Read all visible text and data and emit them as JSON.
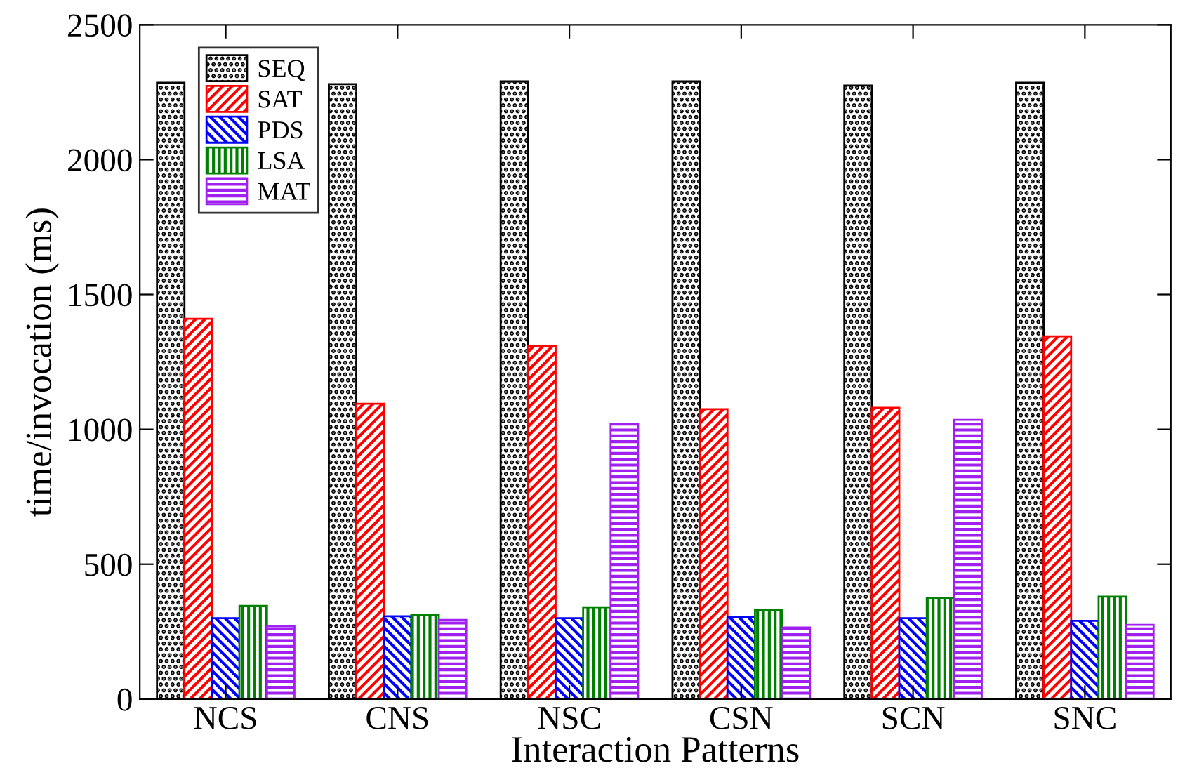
{
  "chart_data": {
    "type": "bar",
    "xlabel": "Interaction Patterns",
    "ylabel": "time/invocation (ms)",
    "categories": [
      "NCS",
      "CNS",
      "NSC",
      "CSN",
      "SCN",
      "SNC"
    ],
    "series": [
      {
        "name": "SEQ",
        "color": "#000000",
        "values": [
          2285,
          2280,
          2290,
          2290,
          2275,
          2285
        ]
      },
      {
        "name": "SAT",
        "color": "#ff0000",
        "values": [
          1410,
          1095,
          1310,
          1075,
          1080,
          1345
        ]
      },
      {
        "name": "PDS",
        "color": "#0000ff",
        "values": [
          300,
          307,
          300,
          305,
          300,
          290
        ]
      },
      {
        "name": "LSA",
        "color": "#008000",
        "values": [
          345,
          312,
          340,
          330,
          375,
          380
        ]
      },
      {
        "name": "MAT",
        "color": "#a020f0",
        "values": [
          270,
          293,
          1020,
          265,
          1035,
          275
        ]
      }
    ],
    "ylim": [
      0,
      2500
    ],
    "yticks": [
      0,
      500,
      1000,
      1500,
      2000,
      2500
    ],
    "grid": false,
    "legend": "top left"
  }
}
